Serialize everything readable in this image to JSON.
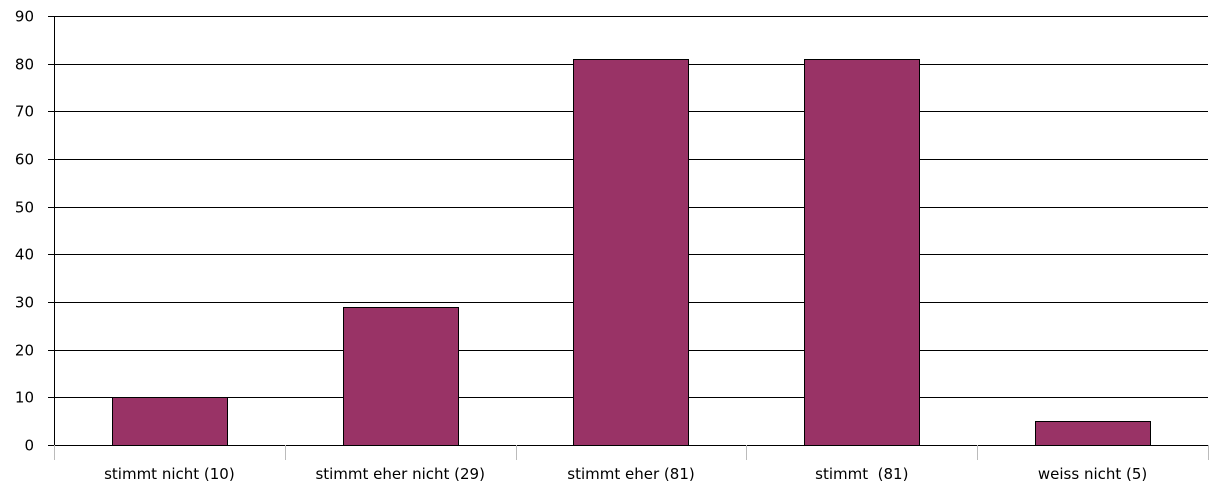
{
  "chart_data": {
    "type": "bar",
    "categories": [
      "stimmt nicht (10)",
      "stimmt eher nicht (29)",
      "stimmt eher (81)",
      "stimmt  (81)",
      "weiss nicht (5)"
    ],
    "values": [
      10,
      29,
      81,
      81,
      5
    ],
    "title": "",
    "xlabel": "",
    "ylabel": "",
    "ylim": [
      0,
      90
    ],
    "yticks": [
      "0",
      "10",
      "20",
      "30",
      "40",
      "50",
      "60",
      "70",
      "80",
      "90"
    ],
    "grid": true,
    "legend": "none",
    "bar_color": "#993366",
    "bar_edge_color": "#000000",
    "gridline_color": "#000000"
  }
}
